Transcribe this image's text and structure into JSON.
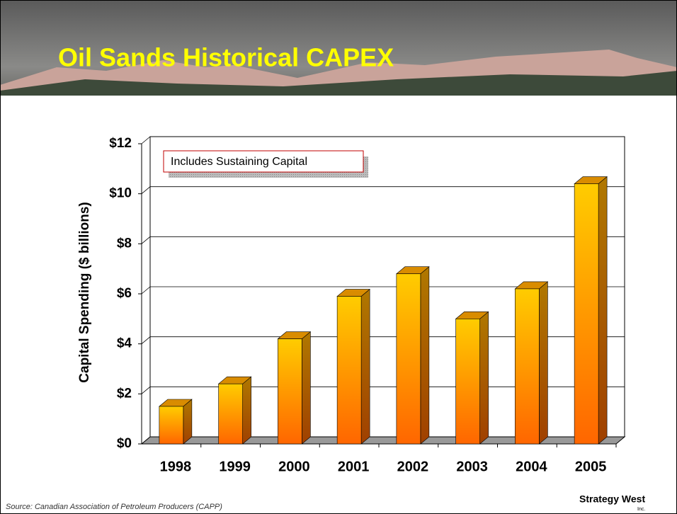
{
  "chart_data": {
    "type": "bar3d",
    "title": "Oil Sands Historical CAPEX",
    "y_label": "Capital Spending ($ billions)",
    "annotation": "Includes Sustaining Capital",
    "source": "Source: Canadian Association of Petroleum Producers (CAPP)",
    "logo": "Strategy West",
    "logo_sub": "Inc.",
    "categories": [
      "1998",
      "1999",
      "2000",
      "2001",
      "2002",
      "2003",
      "2004",
      "2005"
    ],
    "values": [
      1.5,
      2.4,
      4.2,
      5.9,
      6.8,
      5.0,
      6.2,
      10.4
    ],
    "color": "#ff9900",
    "ylim": [
      0,
      12
    ],
    "yticks": [
      {
        "value": 0,
        "label": "$0"
      },
      {
        "value": 2,
        "label": "$2"
      },
      {
        "value": 4,
        "label": "$4"
      },
      {
        "value": 6,
        "label": "$6"
      },
      {
        "value": 8,
        "label": "$8"
      },
      {
        "value": 10,
        "label": "$10"
      },
      {
        "value": 12,
        "label": "$12"
      }
    ],
    "grid": true
  }
}
